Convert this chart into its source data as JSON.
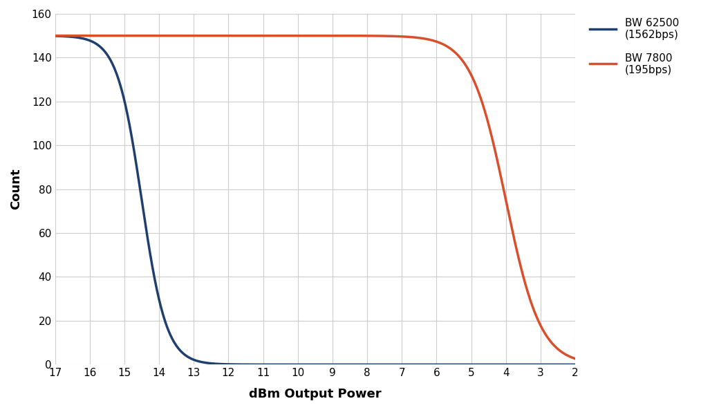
{
  "xlabel": "dBm Output Power",
  "ylabel": "Count",
  "xlim": [
    17,
    2
  ],
  "ylim": [
    0,
    160
  ],
  "xticks": [
    17,
    16,
    15,
    14,
    13,
    12,
    11,
    10,
    9,
    8,
    7,
    6,
    5,
    4,
    3,
    2
  ],
  "yticks": [
    0,
    20,
    40,
    60,
    80,
    100,
    120,
    140,
    160
  ],
  "line1_color": "#1f3f6e",
  "line1_label": "BW 62500\n(1562bps)",
  "line2_color": "#d94f2b",
  "line2_label": "BW 7800\n(195bps)",
  "line_width": 2.5,
  "background_color": "#ffffff",
  "grid_color": "#cccccc",
  "bw62500_midpoint": 14.5,
  "bw62500_steepness": 2.8,
  "bw62500_max": 150,
  "bw7800_midpoint": 4.0,
  "bw7800_steepness": 2.0,
  "bw7800_max": 150
}
